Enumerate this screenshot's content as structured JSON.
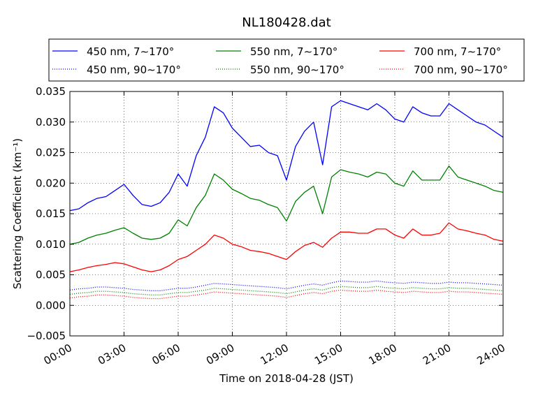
{
  "chart_data": {
    "type": "line",
    "title": "NL180428.dat",
    "xlabel": "Time on 2018-04-28 (JST)",
    "ylabel": "Scattering Coefficient (km⁻¹)",
    "xlim": [
      0,
      24
    ],
    "ylim": [
      -0.005,
      0.035
    ],
    "xticks": [
      "00:00",
      "03:00",
      "06:00",
      "09:00",
      "12:00",
      "15:00",
      "18:00",
      "21:00",
      "24:00"
    ],
    "yticks": [
      "−0.005",
      "0.000",
      "0.005",
      "0.010",
      "0.015",
      "0.020",
      "0.025",
      "0.030",
      "0.035"
    ],
    "grid": true,
    "legend_position": "top",
    "x": [
      0,
      0.5,
      1,
      1.5,
      2,
      2.5,
      3,
      3.5,
      4,
      4.5,
      5,
      5.5,
      6,
      6.5,
      7,
      7.5,
      8,
      8.5,
      9,
      9.5,
      10,
      10.5,
      11,
      11.5,
      12,
      12.5,
      13,
      13.5,
      14,
      14.5,
      15,
      15.5,
      16,
      16.5,
      17,
      17.5,
      18,
      18.5,
      19,
      19.5,
      20,
      20.5,
      21,
      21.5,
      22,
      22.5,
      23,
      23.5,
      24
    ],
    "series": [
      {
        "name": "450 nm, 7∼170°",
        "color": "#0000ff",
        "style": "solid",
        "values": [
          0.0155,
          0.0158,
          0.0168,
          0.0175,
          0.0178,
          0.0188,
          0.0198,
          0.018,
          0.0165,
          0.0162,
          0.0168,
          0.0185,
          0.0215,
          0.0195,
          0.0245,
          0.0275,
          0.0325,
          0.0315,
          0.029,
          0.0275,
          0.026,
          0.0262,
          0.025,
          0.0245,
          0.0205,
          0.026,
          0.0285,
          0.03,
          0.023,
          0.0325,
          0.0335,
          0.033,
          0.0325,
          0.032,
          0.033,
          0.032,
          0.0305,
          0.03,
          0.0325,
          0.0315,
          0.031,
          0.031,
          0.033,
          0.032,
          0.031,
          0.03,
          0.0295,
          0.0285,
          0.0275
        ]
      },
      {
        "name": "450 nm, 90∼170°",
        "color": "#0000ff",
        "style": "dotted",
        "values": [
          0.0025,
          0.0027,
          0.0028,
          0.003,
          0.003,
          0.0029,
          0.0028,
          0.0026,
          0.0025,
          0.0024,
          0.0024,
          0.0026,
          0.0028,
          0.0028,
          0.003,
          0.0033,
          0.0036,
          0.0035,
          0.0034,
          0.0033,
          0.0032,
          0.0031,
          0.003,
          0.0029,
          0.0027,
          0.003,
          0.0033,
          0.0035,
          0.0033,
          0.0037,
          0.004,
          0.0039,
          0.0038,
          0.0038,
          0.004,
          0.0038,
          0.0037,
          0.0036,
          0.0038,
          0.0037,
          0.0036,
          0.0036,
          0.0038,
          0.0037,
          0.0037,
          0.0036,
          0.0035,
          0.0034,
          0.0033
        ]
      },
      {
        "name": "550 nm, 7∼170°",
        "color": "#008000",
        "style": "solid",
        "values": [
          0.01,
          0.0103,
          0.011,
          0.0115,
          0.0118,
          0.0123,
          0.0127,
          0.0118,
          0.011,
          0.0108,
          0.011,
          0.0118,
          0.014,
          0.013,
          0.016,
          0.018,
          0.0215,
          0.0205,
          0.019,
          0.0183,
          0.0175,
          0.0172,
          0.0165,
          0.016,
          0.0138,
          0.017,
          0.0185,
          0.0195,
          0.015,
          0.021,
          0.0222,
          0.0218,
          0.0215,
          0.021,
          0.0218,
          0.0215,
          0.02,
          0.0195,
          0.022,
          0.0205,
          0.0205,
          0.0205,
          0.0228,
          0.021,
          0.0205,
          0.02,
          0.0195,
          0.0188,
          0.0185
        ]
      },
      {
        "name": "550 nm, 90∼170°",
        "color": "#008000",
        "style": "dotted",
        "values": [
          0.0018,
          0.002,
          0.0021,
          0.0023,
          0.0023,
          0.0022,
          0.0021,
          0.0019,
          0.0018,
          0.0017,
          0.0017,
          0.0019,
          0.0021,
          0.0021,
          0.0023,
          0.0025,
          0.0028,
          0.0027,
          0.0026,
          0.0025,
          0.0024,
          0.0023,
          0.0022,
          0.0021,
          0.0019,
          0.0022,
          0.0025,
          0.0027,
          0.0025,
          0.0029,
          0.0031,
          0.003,
          0.0029,
          0.0029,
          0.0031,
          0.0029,
          0.0028,
          0.0027,
          0.0029,
          0.0028,
          0.0027,
          0.0027,
          0.0029,
          0.0028,
          0.0028,
          0.0027,
          0.0026,
          0.0025,
          0.0024
        ]
      },
      {
        "name": "700 nm, 7∼170°",
        "color": "#ff0000",
        "style": "solid",
        "values": [
          0.0055,
          0.0058,
          0.0062,
          0.0065,
          0.0067,
          0.007,
          0.0068,
          0.0063,
          0.0058,
          0.0055,
          0.0058,
          0.0065,
          0.0075,
          0.008,
          0.009,
          0.01,
          0.0115,
          0.011,
          0.01,
          0.0096,
          0.009,
          0.0088,
          0.0085,
          0.008,
          0.0075,
          0.0088,
          0.0098,
          0.0103,
          0.0095,
          0.011,
          0.012,
          0.012,
          0.0118,
          0.0118,
          0.0125,
          0.0125,
          0.0115,
          0.011,
          0.0125,
          0.0115,
          0.0115,
          0.0118,
          0.0135,
          0.0125,
          0.0122,
          0.0118,
          0.0115,
          0.0108,
          0.0105
        ]
      },
      {
        "name": "700 nm, 90∼170°",
        "color": "#ff0000",
        "style": "dotted",
        "values": [
          0.0012,
          0.0014,
          0.0015,
          0.0017,
          0.0017,
          0.0016,
          0.0015,
          0.0013,
          0.0012,
          0.0011,
          0.0011,
          0.0013,
          0.0015,
          0.0015,
          0.0017,
          0.0019,
          0.0022,
          0.0021,
          0.002,
          0.0019,
          0.0018,
          0.0017,
          0.0016,
          0.0015,
          0.0013,
          0.0016,
          0.0019,
          0.0021,
          0.0019,
          0.0023,
          0.0025,
          0.0024,
          0.0023,
          0.0023,
          0.0025,
          0.0023,
          0.0022,
          0.0021,
          0.0023,
          0.0022,
          0.0021,
          0.0021,
          0.0023,
          0.0022,
          0.0022,
          0.0021,
          0.002,
          0.0019,
          0.0018
        ]
      }
    ]
  }
}
